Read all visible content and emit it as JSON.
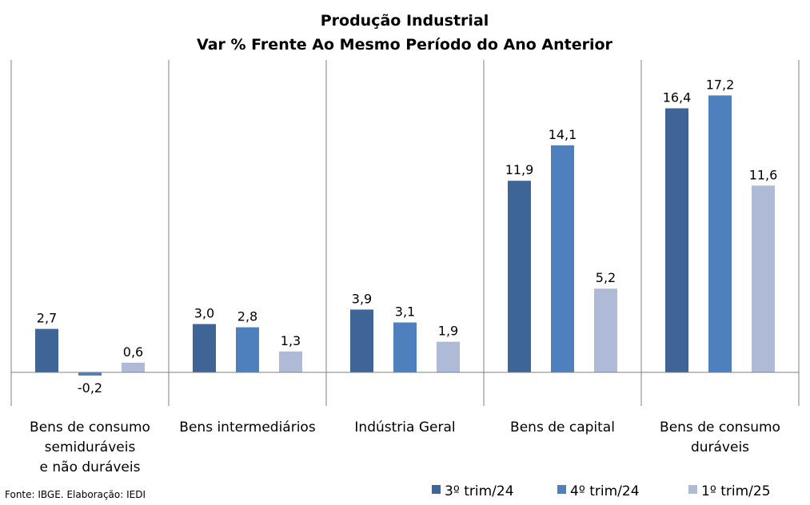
{
  "title": "Produção Industrial",
  "subtitle": "Var % Frente Ao Mesmo Período do Ano Anterior",
  "source": "Fonte: IBGE. Elaboração: IEDI",
  "colors": {
    "series1": "#3e6596",
    "series2": "#4e80bd",
    "series3": "#aebad6",
    "gridline": "#808080",
    "axis": "#808080"
  },
  "chart_data": {
    "type": "bar",
    "title": "Produção Industrial",
    "subtitle": "Var % Frente Ao Mesmo Período do Ano Anterior",
    "categories": [
      "Bens de consumo semiduráveis e não duráveis",
      "Bens intermediários",
      "Indústria Geral",
      "Bens de capital",
      "Bens de consumo duráveis"
    ],
    "category_label_lines": [
      [
        "Bens de consumo",
        "semiduráveis",
        "e não duráveis"
      ],
      [
        "Bens intermediários"
      ],
      [
        "Indústria Geral"
      ],
      [
        "Bens de capital"
      ],
      [
        "Bens de consumo",
        "duráveis"
      ]
    ],
    "series": [
      {
        "name": "3º trim/24",
        "values": [
          2.7,
          3.0,
          3.9,
          11.9,
          16.4
        ],
        "labels": [
          "2,7",
          "3,0",
          "3,9",
          "11,9",
          "16,4"
        ]
      },
      {
        "name": "4º trim/24",
        "values": [
          -0.2,
          2.8,
          3.1,
          14.1,
          17.2
        ],
        "labels": [
          "-0,2",
          "2,8",
          "3,1",
          "14,1",
          "17,2"
        ]
      },
      {
        "name": "1º trim/25",
        "values": [
          0.6,
          1.3,
          1.9,
          5.2,
          11.6
        ],
        "labels": [
          "0,6",
          "1,3",
          "1,9",
          "5,2",
          "11,6"
        ]
      }
    ],
    "ylim": [
      -2,
      20
    ],
    "xlabel": "",
    "ylabel": "",
    "grid": false,
    "category_separators": true,
    "legend_position": "bottom-right"
  }
}
